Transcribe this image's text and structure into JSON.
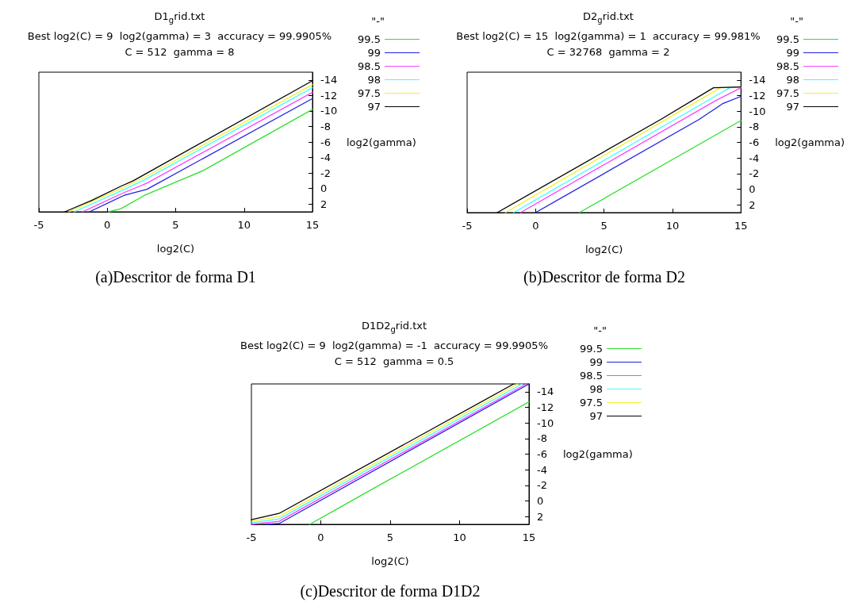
{
  "chart_data": [
    {
      "type": "line",
      "title": "D1$_{g}$rid.txt",
      "subtitle": "Best log2(C) = 9  log2(gamma) = 3  accuracy = 99.9905%\nC = 512  gamma = 8",
      "xlabel": "log2(C)",
      "ylabel": "log2(gamma)",
      "legend_title": "\"-\"",
      "annotations": [
        "(a)Descritor de forma D1"
      ],
      "xlim": [
        -5,
        15
      ],
      "xticks": [
        -5,
        0,
        5,
        10,
        15
      ],
      "ylim": [
        3,
        -15
      ],
      "yticks": [
        -14,
        -12,
        -10,
        -8,
        -6,
        -4,
        -2,
        0,
        2
      ],
      "legend": "right",
      "marker": "none",
      "line_style": "solid",
      "series": [
        {
          "name": "99.5",
          "color": "#30e030",
          "x": [
            0.1,
            1,
            2.7,
            5.1,
            7,
            15
          ],
          "values": [
            3,
            2.6,
            0.9,
            -0.9,
            -2.3,
            -10.2
          ]
        },
        {
          "name": "99",
          "color": "#2020e0",
          "x": [
            -1.3,
            1.2,
            2.9,
            15
          ],
          "values": [
            3,
            0.9,
            0.1,
            -11.6
          ]
        },
        {
          "name": "98.5",
          "color": "#ff40ff",
          "x": [
            -1.8,
            1,
            2.9,
            15
          ],
          "values": [
            3,
            0.7,
            -0.7,
            -12.4
          ]
        },
        {
          "name": "98",
          "color": "#40ffff",
          "x": [
            -2.4,
            1,
            2.7,
            15
          ],
          "values": [
            3,
            0.3,
            -1.1,
            -13
          ]
        },
        {
          "name": "97.5",
          "color": "#f0f030",
          "x": [
            -2.8,
            1,
            2.9,
            15
          ],
          "values": [
            3,
            0,
            -1.6,
            -13.4
          ]
        },
        {
          "name": "97",
          "color": "#000000",
          "x": [
            -3.1,
            -1.1,
            1,
            1.9,
            15
          ],
          "values": [
            3,
            1.5,
            -0.3,
            -1,
            -13.9
          ]
        }
      ]
    },
    {
      "type": "line",
      "title": "D2$_{g}$rid.txt",
      "subtitle": "Best log2(C) = 15  log2(gamma) = 1  accuracy = 99.981%\nC = 32768  gamma = 2",
      "xlabel": "log2(C)",
      "ylabel": "log2(gamma)",
      "legend_title": "\"-\"",
      "annotations": [
        "(b)Descritor de forma D2"
      ],
      "xlim": [
        -5,
        15
      ],
      "xticks": [
        -5,
        0,
        5,
        10,
        15
      ],
      "ylim": [
        3,
        -15
      ],
      "yticks": [
        -14,
        -12,
        -10,
        -8,
        -6,
        -4,
        -2,
        0,
        2
      ],
      "legend": "right",
      "marker": "none",
      "line_style": "solid",
      "series": [
        {
          "name": "99.5",
          "color": "#30e030",
          "x": [
            3.2,
            15
          ],
          "values": [
            3,
            -8.8
          ]
        },
        {
          "name": "99",
          "color": "#2020e0",
          "x": [
            0,
            11.9,
            13.1,
            13.7,
            15
          ],
          "values": [
            3,
            -8.9,
            -10.3,
            -11,
            -11.9
          ]
        },
        {
          "name": "98.5",
          "color": "#ff40ff",
          "x": [
            -1.1,
            13.1,
            15
          ],
          "values": [
            3,
            -11.3,
            -13
          ]
        },
        {
          "name": "98",
          "color": "#40ffff",
          "x": [
            -1.6,
            13.1,
            14.2,
            15
          ],
          "values": [
            3,
            -11.9,
            -13,
            -13.1
          ]
        },
        {
          "name": "97.5",
          "color": "#f0f030",
          "x": [
            -2.2,
            13.5,
            15
          ],
          "values": [
            3,
            -13,
            -13.1
          ]
        },
        {
          "name": "97",
          "color": "#000000",
          "x": [
            -2.8,
            9.2,
            13,
            15
          ],
          "values": [
            3,
            -9,
            -13,
            -13.1
          ]
        }
      ]
    },
    {
      "type": "line",
      "title": "D1D2$_{g}$rid.txt",
      "subtitle": "Best log2(C) = 9  log2(gamma) = -1  accuracy = 99.9905%\nC = 512  gamma = 0.5",
      "xlabel": "log2(C)",
      "ylabel": "log2(gamma)",
      "legend_title": "\"-\"",
      "annotations": [
        "(c)Descritor de forma D1D2"
      ],
      "xlim": [
        -5,
        15
      ],
      "xticks": [
        -5,
        0,
        5,
        10,
        15
      ],
      "ylim": [
        3,
        -15
      ],
      "yticks": [
        -14,
        -12,
        -10,
        -8,
        -6,
        -4,
        -2,
        0,
        2
      ],
      "legend": "right",
      "marker": "none",
      "line_style": "solid",
      "series": [
        {
          "name": "99.5",
          "color": "#30e030",
          "x": [
            -0.8,
            1.1,
            3.2,
            15
          ],
          "values": [
            3,
            1.1,
            -1,
            -12.7
          ]
        },
        {
          "name": "99",
          "color": "#2020e0",
          "x": [
            -3.9,
            -3,
            15
          ],
          "values": [
            3,
            2.9,
            -15
          ]
        },
        {
          "name": "98.5",
          "color": "#ff40ff",
          "x": [
            -5,
            -3,
            14.8
          ],
          "values": [
            3,
            2.6,
            -15
          ]
        },
        {
          "name": "98",
          "color": "#40ffff",
          "x": [
            -5,
            -3,
            14.5
          ],
          "values": [
            2.8,
            2.3,
            -15
          ]
        },
        {
          "name": "97.5",
          "color": "#f0f030",
          "x": [
            -5,
            -3,
            14.2
          ],
          "values": [
            2.6,
            2,
            -15
          ]
        },
        {
          "name": "97",
          "color": "#000000",
          "x": [
            -5,
            -3,
            13.9
          ],
          "values": [
            2.4,
            1.6,
            -15
          ]
        }
      ]
    }
  ]
}
